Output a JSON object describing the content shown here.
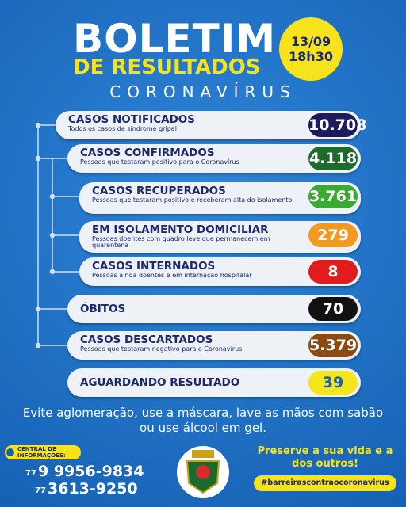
{
  "header": {
    "title": "BOLETIM",
    "subtitle": "DE RESULTADOS",
    "topic": "CORONAVÍRUS",
    "date": "13/09",
    "time": "18h30"
  },
  "items": [
    {
      "title": "CASOS NOTIFICADOS",
      "description": "Todos os casos de síndrome gripal",
      "value": "10.708"
    },
    {
      "title": "CASOS CONFIRMADOS",
      "description": "Pessoas que testaram positivo para o Coronavírus",
      "value": "4.118"
    },
    {
      "title": "CASOS RECUPERADOS",
      "description": "Pessoas que testaram positivo e receberam alta do isolamento",
      "value": "3.761"
    },
    {
      "title": "EM ISOLAMENTO DOMICILIAR",
      "description": "Pessoas doentes com quadro leve que permanecem em quarentena",
      "value": "279"
    },
    {
      "title": "CASOS INTERNADOS",
      "description": "Pessoas ainda doentes e em internação hospitalar",
      "value": "8"
    },
    {
      "title": "ÓBITOS",
      "description": "",
      "value": "70"
    },
    {
      "title": "CASOS DESCARTADOS",
      "description": "Pessoas que testaram negativo para o Coronavírus",
      "value": "5.379"
    },
    {
      "title": "AGUARDANDO RESULTADO",
      "description": "",
      "value": "39"
    }
  ],
  "footer": {
    "message": "Evite aglomeração, use a máscara, lave as mãos com sabão ou use álcool em gel.",
    "info_label": "CENTRAL DE INFORMAÇÕES:",
    "phones": [
      {
        "area": "77",
        "number": "9 9956-9834"
      },
      {
        "area": "77",
        "number": "3613-9250"
      }
    ],
    "slogan": "Preserve a sua vida e a dos outros!",
    "hashtag": "#barreirascontraocoronavirus"
  }
}
